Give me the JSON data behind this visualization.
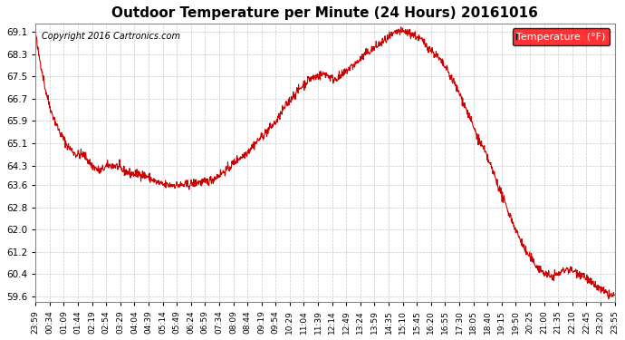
{
  "title": "Outdoor Temperature per Minute (24 Hours) 20161016",
  "copyright_text": "Copyright 2016 Cartronics.com",
  "legend_label": "Temperature  (°F)",
  "background_color": "#ffffff",
  "plot_bg_color": "#ffffff",
  "grid_color": "#bbbbbb",
  "line_color": "#cc0000",
  "yticks": [
    59.6,
    60.4,
    61.2,
    62.0,
    62.8,
    63.6,
    64.3,
    65.1,
    65.9,
    66.7,
    67.5,
    68.3,
    69.1
  ],
  "ylim": [
    59.4,
    69.4
  ],
  "xtick_labels": [
    "23:59",
    "00:34",
    "01:09",
    "01:44",
    "02:19",
    "02:54",
    "03:29",
    "04:04",
    "04:39",
    "05:14",
    "05:49",
    "06:24",
    "06:59",
    "07:34",
    "08:09",
    "08:44",
    "09:19",
    "09:54",
    "10:29",
    "11:04",
    "11:39",
    "12:14",
    "12:49",
    "13:24",
    "13:59",
    "14:35",
    "15:10",
    "15:45",
    "16:20",
    "16:55",
    "17:30",
    "18:05",
    "18:40",
    "19:15",
    "19:50",
    "20:25",
    "21:00",
    "21:35",
    "22:10",
    "22:45",
    "23:20",
    "23:55"
  ],
  "keypoints_x": [
    0,
    5,
    15,
    25,
    40,
    60,
    80,
    100,
    120,
    140,
    160,
    180,
    200,
    220,
    240,
    260,
    280,
    300,
    320,
    340,
    360,
    380,
    400,
    420,
    440,
    460,
    480,
    500,
    520,
    540,
    560,
    580,
    600,
    620,
    640,
    660,
    680,
    700,
    720,
    740,
    760,
    780,
    800,
    820,
    840,
    860,
    880,
    900,
    920,
    940,
    960,
    980,
    1000,
    1020,
    1040,
    1060,
    1080,
    1100,
    1120,
    1140,
    1160,
    1180,
    1200,
    1220,
    1240,
    1260,
    1280,
    1300,
    1320,
    1340,
    1360,
    1380,
    1400,
    1420,
    1440
  ],
  "keypoints_y": [
    69.1,
    68.5,
    67.8,
    67.0,
    66.2,
    65.5,
    65.0,
    64.7,
    64.7,
    64.3,
    64.1,
    64.3,
    64.3,
    64.1,
    64.0,
    64.0,
    63.9,
    63.7,
    63.6,
    63.6,
    63.6,
    63.6,
    63.7,
    63.7,
    63.8,
    64.0,
    64.2,
    64.5,
    64.7,
    65.0,
    65.3,
    65.6,
    65.9,
    66.4,
    66.8,
    67.1,
    67.4,
    67.5,
    67.6,
    67.4,
    67.5,
    67.8,
    68.0,
    68.3,
    68.5,
    68.7,
    68.9,
    69.1,
    69.1,
    69.0,
    68.8,
    68.5,
    68.2,
    67.8,
    67.3,
    66.7,
    66.0,
    65.3,
    64.7,
    64.0,
    63.2,
    62.5,
    61.8,
    61.2,
    60.8,
    60.5,
    60.3,
    60.4,
    60.6,
    60.5,
    60.4,
    60.1,
    59.9,
    59.7,
    59.6
  ]
}
